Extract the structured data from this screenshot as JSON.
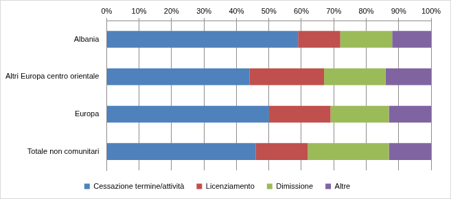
{
  "chart_data": {
    "type": "bar",
    "orientation": "horizontal",
    "stacked": true,
    "categories": [
      "Albania",
      "Altri Europa centro orientale",
      "Europa",
      "Totale non comunitari"
    ],
    "series": [
      {
        "name": "Cessazione termine/attività",
        "color": "#4f81bd",
        "values": [
          59,
          44,
          50,
          46
        ]
      },
      {
        "name": "Licenziamento",
        "color": "#c0504d",
        "values": [
          13,
          23,
          19,
          16
        ]
      },
      {
        "name": "Dimissione",
        "color": "#9bbb59",
        "values": [
          16,
          19,
          18,
          25
        ]
      },
      {
        "name": "Altre",
        "color": "#8064a2",
        "values": [
          12,
          14,
          13,
          13
        ]
      }
    ],
    "xlim": [
      0,
      100
    ],
    "xticks": [
      {
        "value": 0,
        "label": "0%"
      },
      {
        "value": 10,
        "label": "10%"
      },
      {
        "value": 20,
        "label": "20%"
      },
      {
        "value": 30,
        "label": "30%"
      },
      {
        "value": 40,
        "label": "40%"
      },
      {
        "value": 50,
        "label": "50%"
      },
      {
        "value": 60,
        "label": "60%"
      },
      {
        "value": 70,
        "label": "70%"
      },
      {
        "value": 80,
        "label": "80%"
      },
      {
        "value": 90,
        "label": "90%"
      },
      {
        "value": 100,
        "label": "100%"
      }
    ],
    "grid": true,
    "legend": "bottom"
  }
}
